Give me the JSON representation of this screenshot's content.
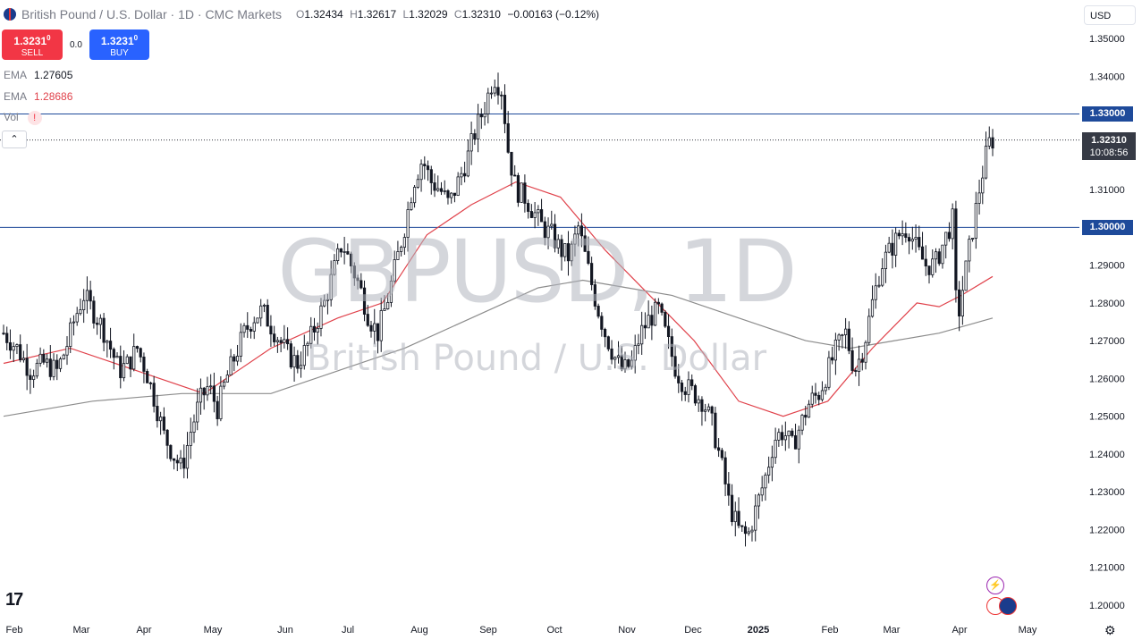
{
  "header": {
    "title": "British Pound / U.S. Dollar",
    "interval": "1D",
    "source": "CMC Markets",
    "open_label": "O",
    "open": "1.32434",
    "high_label": "H",
    "high": "1.32617",
    "low_label": "L",
    "low": "1.32029",
    "close_label": "C",
    "close": "1.32310",
    "change": "−0.00163 (−0.12%)"
  },
  "trade": {
    "sell_price": "1.3231",
    "sell_sup": "0",
    "sell_label": "SELL",
    "spread": "0.0",
    "buy_price": "1.3231",
    "buy_sup": "0",
    "buy_label": "BUY"
  },
  "indicators": {
    "ema1_label": "EMA",
    "ema1_value": "1.27605",
    "ema2_label": "EMA",
    "ema2_value": "1.28686",
    "vol_label": "Vol",
    "vol_warn": "!"
  },
  "currency_selector": "USD",
  "watermark": {
    "symbol": "GBPUSD, 1D",
    "name": "British Pound / U.S. Dollar"
  },
  "logo": "17",
  "badges": {
    "level_high": "1.33000",
    "level_low": "1.30000",
    "last_price": "1.32310",
    "countdown": "10:08:56"
  },
  "colors": {
    "up": "#131722",
    "down": "#131722",
    "ema_fast": "#e0424b",
    "ema_slow": "#8c8c8c",
    "hline": "#1e4a9a",
    "badge": "#1e4a9a"
  },
  "chart_data": {
    "type": "candlestick",
    "title": "British Pound / U.S. Dollar · 1D · CMC Markets",
    "ylim": [
      1.195,
      1.355
    ],
    "y_ticks": [
      "1.35000",
      "1.34000",
      "1.33000",
      "1.32000",
      "1.31000",
      "1.30000",
      "1.29000",
      "1.28000",
      "1.27000",
      "1.26000",
      "1.25000",
      "1.24000",
      "1.23000",
      "1.22000",
      "1.21000",
      "1.20000"
    ],
    "x_ticks": [
      "Feb",
      "Mar",
      "Apr",
      "May",
      "Jun",
      "Jul",
      "Aug",
      "Sep",
      "Oct",
      "Nov",
      "Dec",
      "2025",
      "Feb",
      "Mar",
      "Apr",
      "May"
    ],
    "horizontal_lines": [
      1.33,
      1.3
    ],
    "last_price": 1.3231,
    "close_path": [
      [
        0,
        1.272
      ],
      [
        6,
        1.268
      ],
      [
        12,
        1.262
      ],
      [
        18,
        1.264
      ],
      [
        24,
        1.262
      ],
      [
        28,
        1.268
      ],
      [
        32,
        1.276
      ],
      [
        36,
        1.282
      ],
      [
        40,
        1.278
      ],
      [
        44,
        1.274
      ],
      [
        48,
        1.268
      ],
      [
        52,
        1.262
      ],
      [
        56,
        1.264
      ],
      [
        60,
        1.268
      ],
      [
        64,
        1.262
      ],
      [
        68,
        1.254
      ],
      [
        72,
        1.245
      ],
      [
        76,
        1.24
      ],
      [
        80,
        1.236
      ],
      [
        84,
        1.246
      ],
      [
        88,
        1.254
      ],
      [
        92,
        1.258
      ],
      [
        96,
        1.252
      ],
      [
        100,
        1.26
      ],
      [
        104,
        1.266
      ],
      [
        108,
        1.272
      ],
      [
        112,
        1.276
      ],
      [
        116,
        1.278
      ],
      [
        120,
        1.274
      ],
      [
        124,
        1.27
      ],
      [
        128,
        1.266
      ],
      [
        132,
        1.264
      ],
      [
        136,
        1.268
      ],
      [
        140,
        1.274
      ],
      [
        144,
        1.28
      ],
      [
        148,
        1.288
      ],
      [
        152,
        1.296
      ],
      [
        156,
        1.29
      ],
      [
        160,
        1.284
      ],
      [
        164,
        1.276
      ],
      [
        168,
        1.272
      ],
      [
        172,
        1.28
      ],
      [
        176,
        1.29
      ],
      [
        180,
        1.3
      ],
      [
        184,
        1.312
      ],
      [
        188,
        1.318
      ],
      [
        192,
        1.312
      ],
      [
        196,
        1.31
      ],
      [
        200,
        1.306
      ],
      [
        204,
        1.312
      ],
      [
        208,
        1.318
      ],
      [
        212,
        1.326
      ],
      [
        216,
        1.332
      ],
      [
        220,
        1.34
      ],
      [
        224,
        1.336
      ],
      [
        226,
        1.322
      ],
      [
        230,
        1.31
      ],
      [
        234,
        1.308
      ],
      [
        238,
        1.304
      ],
      [
        242,
        1.3
      ],
      [
        246,
        1.298
      ],
      [
        250,
        1.294
      ],
      [
        254,
        1.292
      ],
      [
        258,
        1.3
      ],
      [
        262,
        1.29
      ],
      [
        266,
        1.28
      ],
      [
        270,
        1.272
      ],
      [
        274,
        1.266
      ],
      [
        278,
        1.262
      ],
      [
        282,
        1.264
      ],
      [
        286,
        1.272
      ],
      [
        290,
        1.276
      ],
      [
        294,
        1.278
      ],
      [
        298,
        1.27
      ],
      [
        302,
        1.262
      ],
      [
        306,
        1.258
      ],
      [
        310,
        1.256
      ],
      [
        314,
        1.254
      ],
      [
        318,
        1.248
      ],
      [
        322,
        1.238
      ],
      [
        326,
        1.226
      ],
      [
        330,
        1.22
      ],
      [
        334,
        1.218
      ],
      [
        338,
        1.226
      ],
      [
        342,
        1.234
      ],
      [
        346,
        1.244
      ],
      [
        350,
        1.246
      ],
      [
        354,
        1.242
      ],
      [
        358,
        1.248
      ],
      [
        362,
        1.254
      ],
      [
        366,
        1.256
      ],
      [
        370,
        1.262
      ],
      [
        374,
        1.268
      ],
      [
        378,
        1.272
      ],
      [
        382,
        1.262
      ],
      [
        386,
        1.268
      ],
      [
        390,
        1.28
      ],
      [
        394,
        1.29
      ],
      [
        398,
        1.294
      ],
      [
        402,
        1.298
      ],
      [
        406,
        1.3
      ],
      [
        410,
        1.294
      ],
      [
        414,
        1.29
      ],
      [
        418,
        1.29
      ],
      [
        422,
        1.296
      ],
      [
        426,
        1.302
      ],
      [
        428,
        1.274
      ],
      [
        430,
        1.282
      ],
      [
        434,
        1.296
      ],
      [
        438,
        1.31
      ],
      [
        442,
        1.322
      ],
      [
        444,
        1.3231
      ]
    ],
    "ema_fast_path": [
      [
        0,
        1.264
      ],
      [
        30,
        1.268
      ],
      [
        60,
        1.262
      ],
      [
        90,
        1.256
      ],
      [
        120,
        1.268
      ],
      [
        150,
        1.276
      ],
      [
        170,
        1.28
      ],
      [
        190,
        1.298
      ],
      [
        210,
        1.306
      ],
      [
        230,
        1.312
      ],
      [
        250,
        1.308
      ],
      [
        270,
        1.294
      ],
      [
        290,
        1.282
      ],
      [
        310,
        1.27
      ],
      [
        330,
        1.254
      ],
      [
        350,
        1.25
      ],
      [
        370,
        1.254
      ],
      [
        390,
        1.268
      ],
      [
        410,
        1.28
      ],
      [
        420,
        1.279
      ],
      [
        430,
        1.282
      ],
      [
        444,
        1.287
      ]
    ],
    "ema_slow_path": [
      [
        0,
        1.25
      ],
      [
        40,
        1.254
      ],
      [
        80,
        1.256
      ],
      [
        120,
        1.256
      ],
      [
        150,
        1.262
      ],
      [
        180,
        1.268
      ],
      [
        210,
        1.276
      ],
      [
        240,
        1.284
      ],
      [
        260,
        1.286
      ],
      [
        280,
        1.284
      ],
      [
        300,
        1.282
      ],
      [
        320,
        1.278
      ],
      [
        340,
        1.274
      ],
      [
        360,
        1.27
      ],
      [
        380,
        1.268
      ],
      [
        400,
        1.27
      ],
      [
        420,
        1.272
      ],
      [
        444,
        1.276
      ]
    ]
  }
}
